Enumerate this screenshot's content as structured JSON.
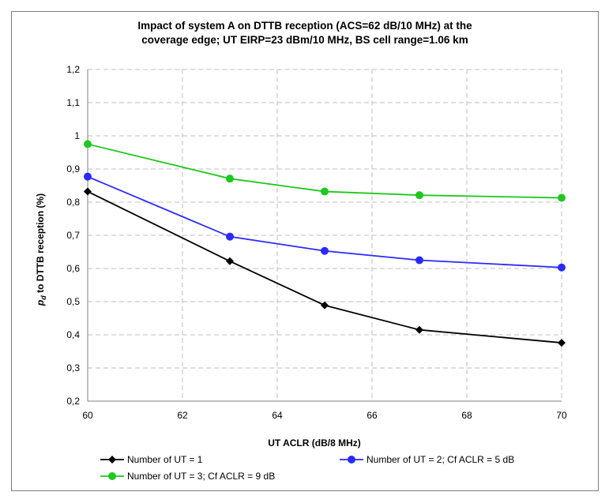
{
  "chart_data": {
    "type": "line",
    "title_line1": "Impact of system A on DTTB reception (ACS=62 dB/10 MHz) at the",
    "title_line2": "coverage edge; UT EIRP=23 dBm/10 MHz, BS cell range=1.06 km",
    "xlabel": "UT ACLR (dB/8 MHz)",
    "ylabel_symbol": "p",
    "ylabel_subscript": "d",
    "ylabel_rest": " to DTTB reception (%)",
    "xlim": [
      60,
      70
    ],
    "ylim": [
      0.2,
      1.2
    ],
    "x_ticks": [
      "60",
      "62",
      "64",
      "66",
      "68",
      "70"
    ],
    "y_ticks": [
      "0,2",
      "0,3",
      "0,4",
      "0,5",
      "0,6",
      "0,7",
      "0,8",
      "0,9",
      "1",
      "1,1",
      "1,2"
    ],
    "grid": true,
    "legend_position": "bottom",
    "series": [
      {
        "name": "Number of UT = 1",
        "color": "#000000",
        "marker": "diamond",
        "x": [
          60,
          63,
          65,
          67,
          70
        ],
        "values": [
          0.832,
          0.622,
          0.489,
          0.415,
          0.376
        ]
      },
      {
        "name": "Number of UT = 2; Cf ACLR = 5 dB",
        "color": "#2a2aff",
        "marker": "circle",
        "x": [
          60,
          63,
          65,
          67,
          70
        ],
        "values": [
          0.877,
          0.696,
          0.653,
          0.625,
          0.603
        ]
      },
      {
        "name": "Number of UT = 3; Cf ACLR = 9 dB",
        "color": "#1ec81e",
        "marker": "circle",
        "x": [
          60,
          63,
          65,
          67,
          70
        ],
        "values": [
          0.975,
          0.871,
          0.832,
          0.821,
          0.813
        ]
      }
    ]
  }
}
